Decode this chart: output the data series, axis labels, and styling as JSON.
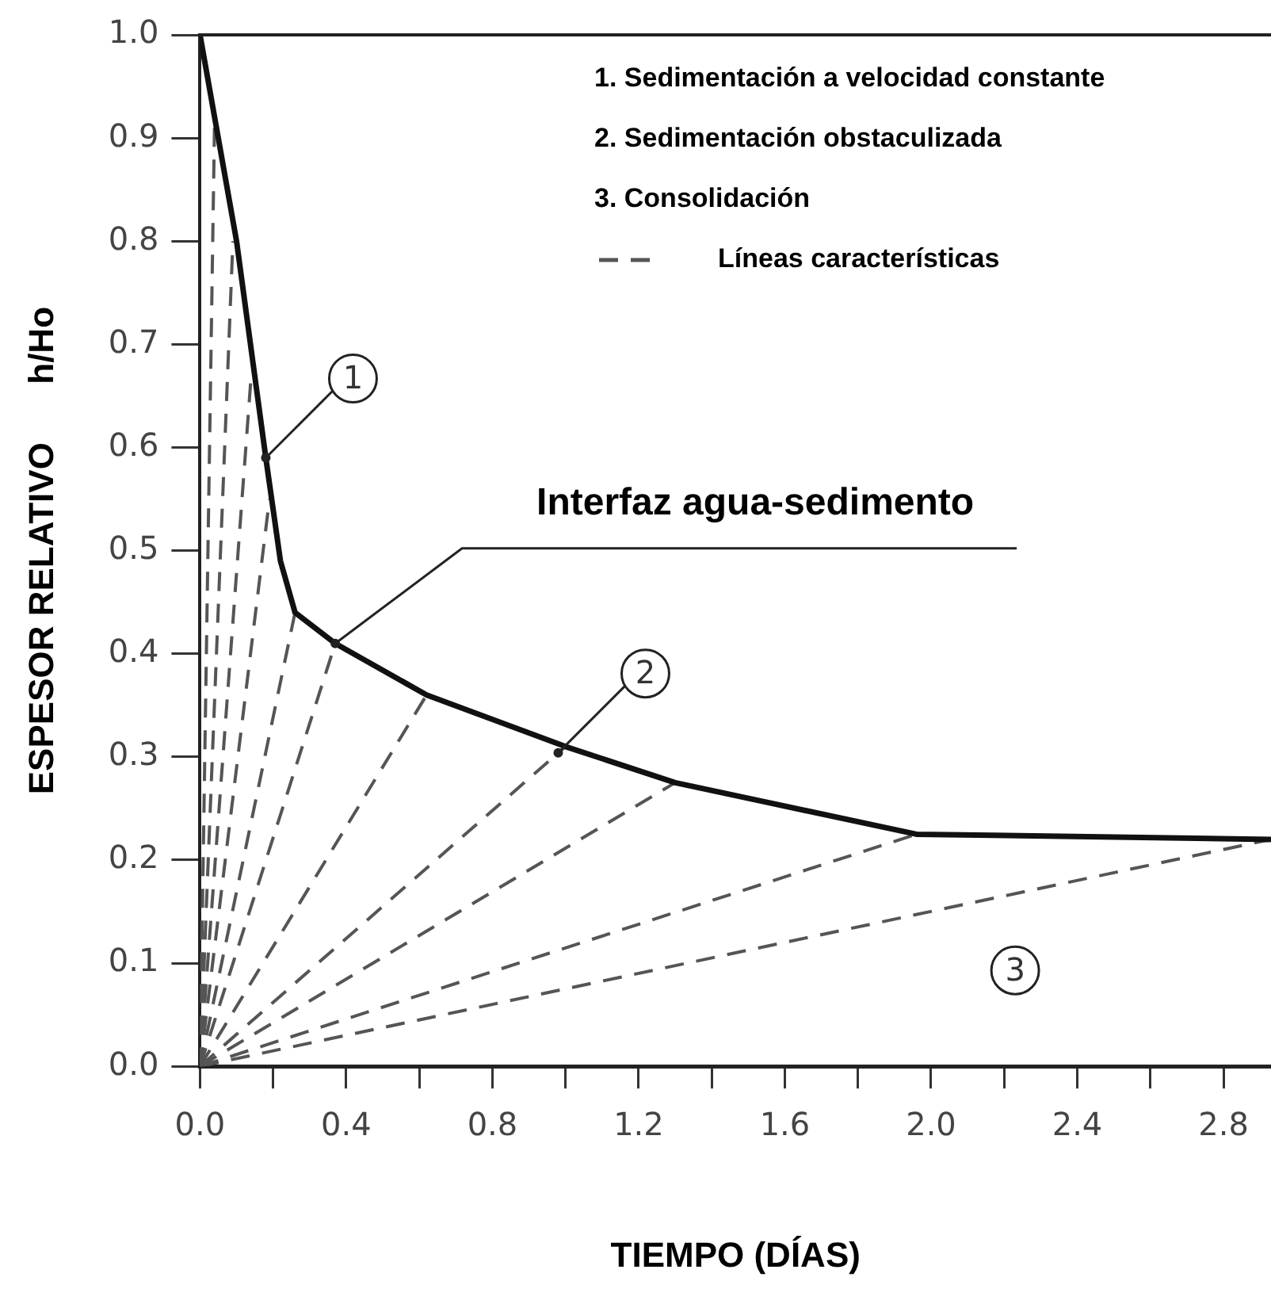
{
  "chart_data": {
    "type": "line",
    "xlabel": "TIEMPO (DÍAS)",
    "ylabel": "ESPESOR RELATIVO      h/Ho",
    "xlim": [
      0,
      2.93
    ],
    "ylim": [
      0,
      1
    ],
    "xticks": [
      {
        "value": 0,
        "label": "0.0"
      },
      {
        "value": 0.2,
        "label": null
      },
      {
        "value": 0.4,
        "label": "0.4"
      },
      {
        "value": 0.6,
        "label": null
      },
      {
        "value": 0.8,
        "label": "0.8"
      },
      {
        "value": 1.0,
        "label": null
      },
      {
        "value": 1.2,
        "label": "1.2"
      },
      {
        "value": 1.4,
        "label": null
      },
      {
        "value": 1.6,
        "label": "1.6"
      },
      {
        "value": 1.8,
        "label": null
      },
      {
        "value": 2.0,
        "label": "2.0"
      },
      {
        "value": 2.2,
        "label": null
      },
      {
        "value": 2.4,
        "label": "2.4"
      },
      {
        "value": 2.6,
        "label": null
      },
      {
        "value": 2.8,
        "label": "2.8"
      }
    ],
    "yticks": [
      {
        "value": 0,
        "label": "0.0"
      },
      {
        "value": 0.1,
        "label": "0.1"
      },
      {
        "value": 0.2,
        "label": "0.2"
      },
      {
        "value": 0.3,
        "label": "0.3"
      },
      {
        "value": 0.4,
        "label": "0.4"
      },
      {
        "value": 0.5,
        "label": "0.5"
      },
      {
        "value": 0.6,
        "label": "0.6"
      },
      {
        "value": 0.7,
        "label": "0.7"
      },
      {
        "value": 0.8,
        "label": "0.8"
      },
      {
        "value": 0.9,
        "label": "0.9"
      },
      {
        "value": 1.0,
        "label": "1.0"
      }
    ],
    "grid": false,
    "legend": "top right",
    "marker": "none",
    "series": [
      {
        "color": "#111111",
        "line_style": "solid",
        "x": [
          0.0,
          0.1,
          0.18,
          0.22,
          0.26,
          0.37,
          0.62,
          1.0,
          1.3,
          1.96,
          2.93
        ],
        "values": [
          1.0,
          0.8,
          0.59,
          0.49,
          0.44,
          0.41,
          0.36,
          0.31,
          0.275,
          0.225,
          0.22
        ]
      },
      {
        "name": "Líneas características",
        "color": "#555555",
        "line_style": "dashed",
        "x": [
          0,
          0.04
        ],
        "values": [
          0,
          0.92
        ]
      },
      {
        "color": "#555555",
        "line_style": "dashed",
        "x": [
          0,
          0.09
        ],
        "values": [
          0,
          0.8
        ]
      },
      {
        "color": "#555555",
        "line_style": "dashed",
        "x": [
          0,
          0.14
        ],
        "values": [
          0,
          0.67
        ]
      },
      {
        "color": "#555555",
        "line_style": "dashed",
        "x": [
          0,
          0.19
        ],
        "values": [
          0,
          0.55
        ]
      },
      {
        "color": "#555555",
        "line_style": "dashed",
        "x": [
          0,
          0.26
        ],
        "values": [
          0,
          0.44
        ]
      },
      {
        "color": "#555555",
        "line_style": "dashed",
        "x": [
          0,
          0.37
        ],
        "values": [
          0,
          0.41
        ]
      },
      {
        "color": "#555555",
        "line_style": "dashed",
        "x": [
          0,
          0.62
        ],
        "values": [
          0,
          0.36
        ]
      },
      {
        "color": "#555555",
        "line_style": "dashed",
        "x": [
          0,
          1.0
        ],
        "values": [
          0,
          0.31
        ]
      },
      {
        "color": "#555555",
        "line_style": "dashed",
        "x": [
          0,
          1.3
        ],
        "values": [
          0,
          0.275
        ]
      },
      {
        "color": "#555555",
        "line_style": "dashed",
        "x": [
          0,
          1.96
        ],
        "values": [
          0,
          0.225
        ]
      },
      {
        "color": "#555555",
        "line_style": "dashed",
        "x": [
          0,
          2.93
        ],
        "values": [
          0,
          0.22
        ]
      }
    ],
    "annotations": [
      "1. Sedimentación a velocidad constante",
      "2. Sedimentación obstaculizada",
      "3. Consolidación",
      {
        "text": "Interfaz agua-sedimento",
        "x": 0.37,
        "y": 0.41
      },
      {
        "text": "1",
        "x": 0.18,
        "y": 0.59
      },
      {
        "text": "2",
        "x": 0.98,
        "y": 0.304
      },
      {
        "text": "3",
        "x": 2.23,
        "y": 0.093
      }
    ]
  }
}
